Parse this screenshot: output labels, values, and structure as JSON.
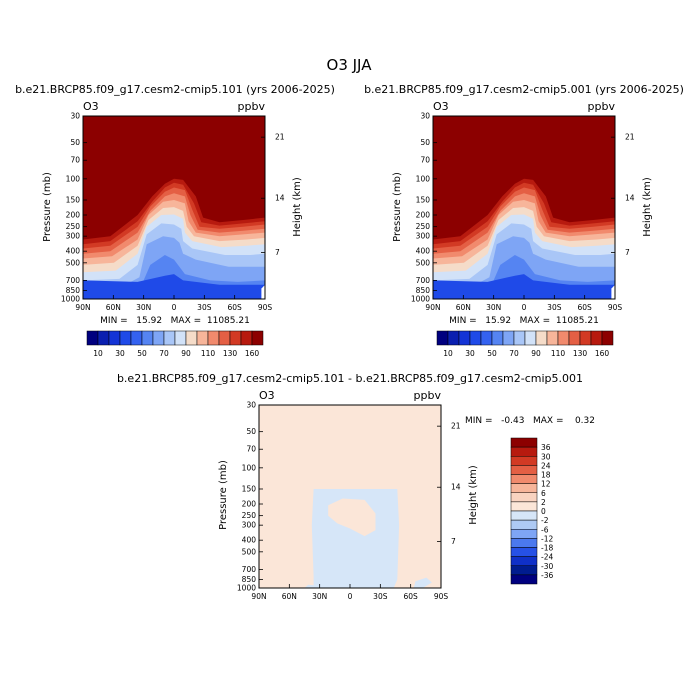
{
  "page_title": "O3 JJA",
  "chart_data": [
    {
      "type": "contour",
      "title": "b.e21.BRCP85.f09_g17.cesm2-cmip5.101 (yrs 2006-2025)",
      "field_label": "O3",
      "units": "ppbv",
      "xlabel": "",
      "ylabel": "Pressure (mb)",
      "y2label": "Height (km)",
      "x_ticks": [
        "90N",
        "60N",
        "30N",
        "0",
        "30S",
        "60S",
        "90S"
      ],
      "y_ticks": [
        30,
        50,
        70,
        100,
        150,
        200,
        250,
        300,
        400,
        500,
        700,
        850,
        1000
      ],
      "y2_ticks": [
        21,
        14,
        7
      ],
      "ylim": [
        1000,
        30
      ],
      "y_scale": "log",
      "stats": "MIN =   15.92   MAX =  11085.21",
      "colorbar_labels": [
        "10",
        "30",
        "50",
        "70",
        "90",
        "110",
        "130",
        "160"
      ],
      "colorbar_levels": [
        10,
        20,
        30,
        40,
        50,
        60,
        70,
        80,
        90,
        100,
        110,
        120,
        130,
        140,
        150,
        160
      ],
      "min": 15.92,
      "max": 11085.21
    },
    {
      "type": "contour",
      "title": "b.e21.BRCP85.f09_g17.cesm2-cmip5.001 (yrs 2006-2025)",
      "field_label": "O3",
      "units": "ppbv",
      "xlabel": "",
      "ylabel": "Pressure (mb)",
      "y2label": "Height (km)",
      "x_ticks": [
        "90N",
        "60N",
        "30N",
        "0",
        "30S",
        "60S",
        "90S"
      ],
      "y_ticks": [
        30,
        50,
        70,
        100,
        150,
        200,
        250,
        300,
        400,
        500,
        700,
        850,
        1000
      ],
      "y2_ticks": [
        21,
        14,
        7
      ],
      "ylim": [
        1000,
        30
      ],
      "y_scale": "log",
      "stats": "MIN =   15.92   MAX =  11085.21",
      "colorbar_labels": [
        "10",
        "30",
        "50",
        "70",
        "90",
        "110",
        "130",
        "160"
      ],
      "colorbar_levels": [
        10,
        20,
        30,
        40,
        50,
        60,
        70,
        80,
        90,
        100,
        110,
        120,
        130,
        140,
        150,
        160
      ],
      "min": 15.92,
      "max": 11085.21
    },
    {
      "type": "contour",
      "title": "b.e21.BRCP85.f09_g17.cesm2-cmip5.101 - b.e21.BRCP85.f09_g17.cesm2-cmip5.001",
      "field_label": "O3",
      "units": "ppbv",
      "xlabel": "",
      "ylabel": "Pressure (mb)",
      "y2label": "Height (km)",
      "x_ticks": [
        "90N",
        "60N",
        "30N",
        "0",
        "30S",
        "60S",
        "90S"
      ],
      "y_ticks": [
        30,
        50,
        70,
        100,
        150,
        200,
        250,
        300,
        400,
        500,
        700,
        850,
        1000
      ],
      "y2_ticks": [
        21,
        14,
        7
      ],
      "ylim": [
        1000,
        30
      ],
      "y_scale": "log",
      "stats": "MIN =   -0.43   MAX =    0.32",
      "colorbar_labels": [
        "36",
        "30",
        "24",
        "18",
        "12",
        "6",
        "2",
        "0",
        "-2",
        "-6",
        "-12",
        "-18",
        "-24",
        "-30",
        "-36"
      ],
      "min": -0.43,
      "max": 0.32
    }
  ]
}
